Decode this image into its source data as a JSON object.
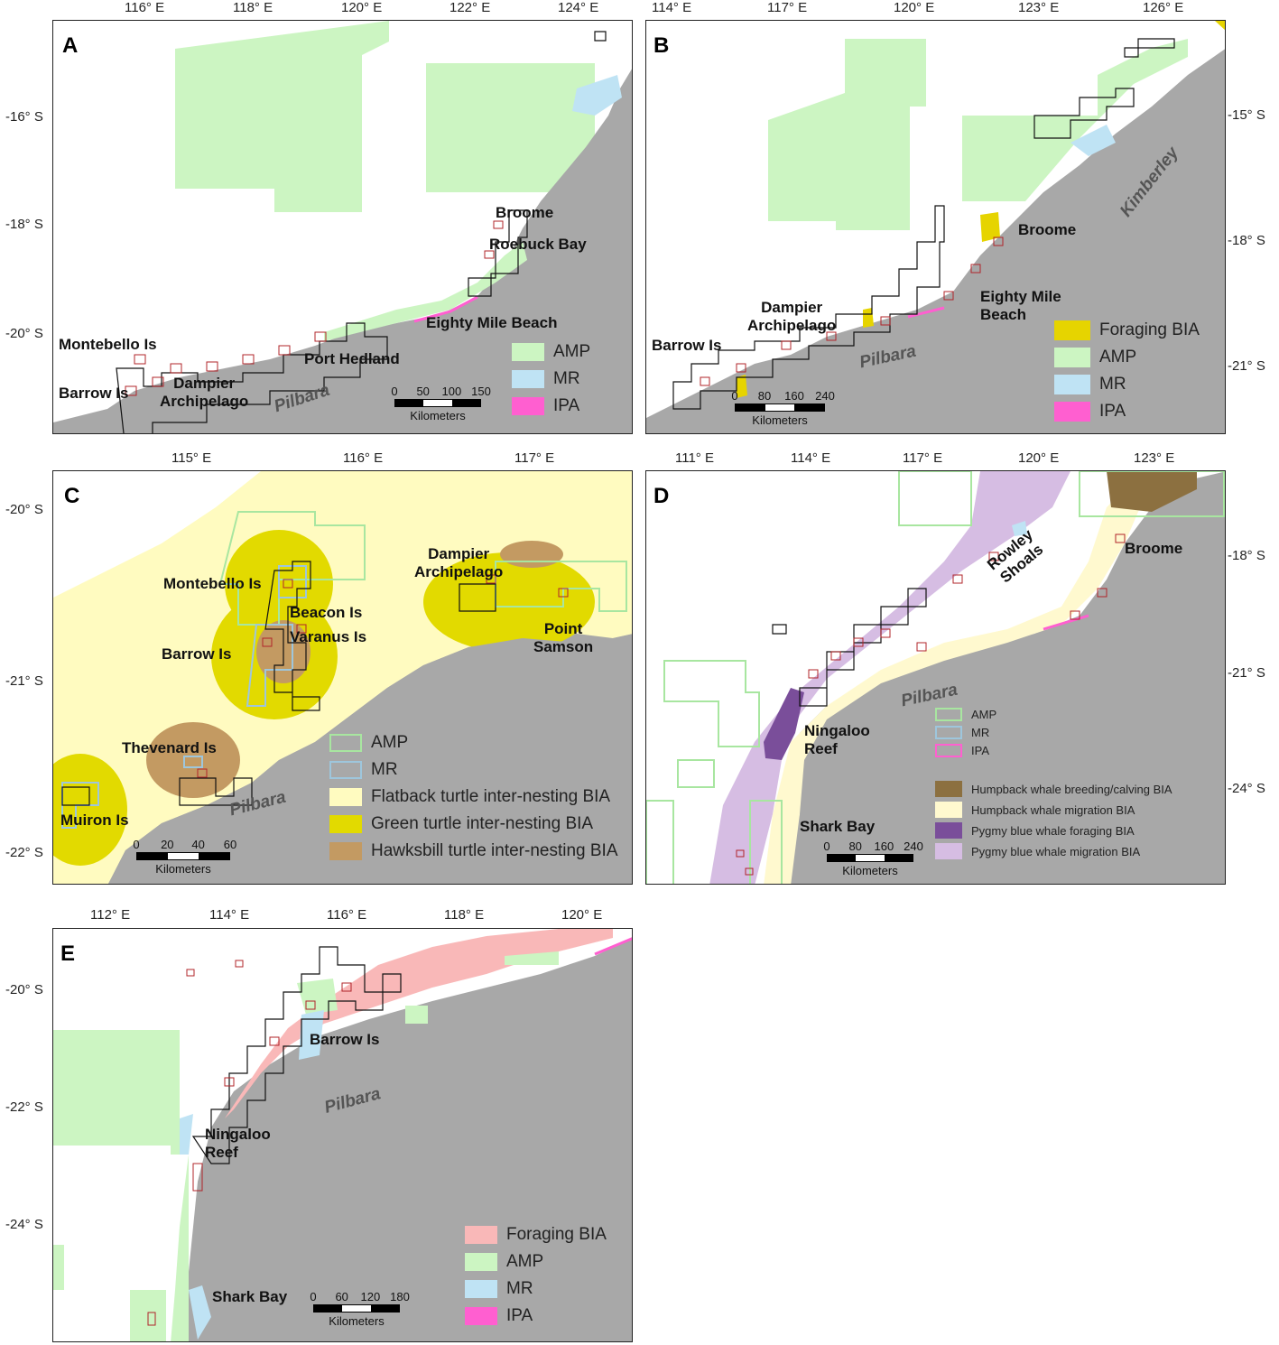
{
  "colors": {
    "land": "#a8a8a8",
    "amp": "#ccf5c2",
    "amp_outline": "#a8e6a0",
    "mr": "#bfe3f4",
    "mr_outline": "#9ec6dc",
    "ipa": "#ff5fd0",
    "foraging_b": "#e6d400",
    "flatback": "#fffbc0",
    "green_turtle": "#e2da00",
    "hawksbill": "#c39a62",
    "humpback_breeding": "#8c7040",
    "humpback_migration": "#fff9cf",
    "pygmy_foraging": "#7a4e9a",
    "pygmy_migration": "#d6bde3",
    "foraging_e": "#f9b8b8",
    "permit_black": "#111111",
    "permit_red": "#b0242a"
  },
  "panels": {
    "A": {
      "label": "A",
      "x_ticks": [
        "116° E",
        "118° E",
        "120° E",
        "122° E",
        "124° E"
      ],
      "y_ticks": [
        "-16° S",
        "-18° S",
        "-20° S"
      ],
      "places": [
        "Broome",
        "Roebuck Bay",
        "Eighty Mile Beach",
        "Montebello Is",
        "Port Hedland",
        "Barrow Is",
        "Dampier\nArchipelago"
      ],
      "region": "Pilbara",
      "legend": [
        "AMP",
        "MR",
        "IPA"
      ],
      "scale": {
        "ticks": [
          "0",
          "50",
          "100",
          "150"
        ],
        "unit": "Kilometers"
      }
    },
    "B": {
      "label": "B",
      "x_ticks": [
        "114° E",
        "117° E",
        "120° E",
        "123° E",
        "126° E"
      ],
      "y_ticks": [
        "-15° S",
        "-18° S",
        "-21° S"
      ],
      "places": [
        "Broome",
        "Eighty Mile\nBeach",
        "Dampier\nArchipelago",
        "Barrow Is"
      ],
      "regions": [
        "Kimberley",
        "Pilbara"
      ],
      "legend": [
        "Foraging BIA",
        "AMP",
        "MR",
        "IPA"
      ],
      "scale": {
        "ticks": [
          "0",
          "80",
          "160",
          "240"
        ],
        "unit": "Kilometers"
      }
    },
    "C": {
      "label": "C",
      "x_ticks": [
        "115° E",
        "116° E",
        "117° E"
      ],
      "y_ticks": [
        "-20° S",
        "-21° S",
        "-22° S"
      ],
      "places": [
        "Dampier\nArchipelago",
        "Montebello Is",
        "Beacon Is",
        "Varanus Is",
        "Barrow Is",
        "Point\nSamson",
        "Thevenard Is",
        "Muiron Is"
      ],
      "region": "Pilbara",
      "legend": [
        "AMP",
        "MR",
        "Flatback turtle inter-nesting BIA",
        "Green turtle inter-nesting BIA",
        "Hawksbill turtle inter-nesting BIA"
      ],
      "scale": {
        "ticks": [
          "0",
          "20",
          "40",
          "60"
        ],
        "unit": "Kilometers"
      }
    },
    "D": {
      "label": "D",
      "x_ticks": [
        "111° E",
        "114° E",
        "117° E",
        "120° E",
        "123° E"
      ],
      "y_ticks": [
        "-18° S",
        "-21° S",
        "-24° S"
      ],
      "places": [
        "Rowley\nShoals",
        "Broome",
        "Ningaloo\nReef",
        "Shark Bay"
      ],
      "region": "Pilbara",
      "legend": [
        "AMP",
        "MR",
        "IPA"
      ],
      "legend2": [
        "Humpback whale breeding/calving BIA",
        "Humpback whale migration BIA",
        "Pygmy blue whale foraging BIA",
        "Pygmy blue whale migration BIA"
      ],
      "scale": {
        "ticks": [
          "0",
          "80",
          "160",
          "240"
        ],
        "unit": "Kilometers"
      }
    },
    "E": {
      "label": "E",
      "x_ticks": [
        "112° E",
        "114° E",
        "116° E",
        "118° E",
        "120° E"
      ],
      "y_ticks": [
        "-20° S",
        "-22° S",
        "-24° S"
      ],
      "places": [
        "Barrow Is",
        "Ningaloo\nReef",
        "Shark Bay"
      ],
      "region": "Pilbara",
      "legend": [
        "Foraging BIA",
        "AMP",
        "MR",
        "IPA"
      ],
      "scale": {
        "ticks": [
          "0",
          "60",
          "120",
          "180"
        ],
        "unit": "Kilometers"
      }
    }
  }
}
